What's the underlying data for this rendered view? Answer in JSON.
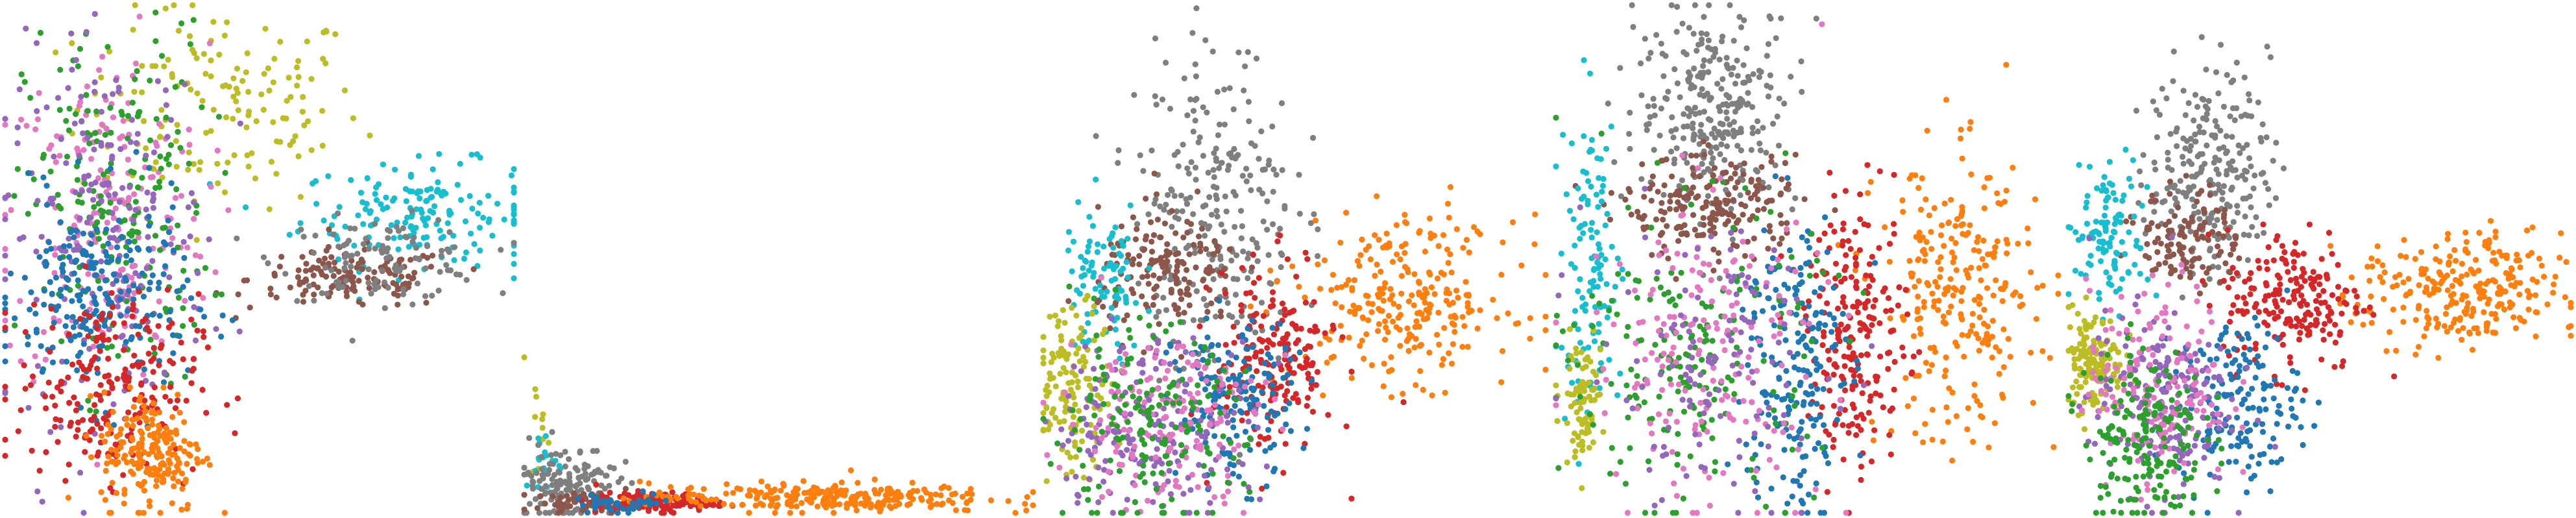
{
  "chart_data": [
    {
      "type": "scatter",
      "xlim": [
        0,
        1
      ],
      "ylim": [
        0,
        1
      ],
      "axes": false,
      "grid": false,
      "legend": "none",
      "clusters": [
        {
          "color": "#bcbd22",
          "n": 150,
          "cx": 0.42,
          "cy": 0.8,
          "sx": 0.14,
          "sy": 0.1
        },
        {
          "color": "#17becf",
          "n": 170,
          "cx": 0.82,
          "cy": 0.59,
          "sx": 0.12,
          "sy": 0.05
        },
        {
          "color": "#8c564b",
          "n": 140,
          "cx": 0.68,
          "cy": 0.46,
          "sx": 0.1,
          "sy": 0.03
        },
        {
          "color": "#7f7f7f",
          "n": 110,
          "cx": 0.74,
          "cy": 0.5,
          "sx": 0.1,
          "sy": 0.04
        },
        {
          "color": "#e377c2",
          "n": 190,
          "cx": 0.2,
          "cy": 0.58,
          "sx": 0.1,
          "sy": 0.17
        },
        {
          "color": "#2ca02c",
          "n": 190,
          "cx": 0.22,
          "cy": 0.6,
          "sx": 0.09,
          "sy": 0.18
        },
        {
          "color": "#9467bd",
          "n": 200,
          "cx": 0.2,
          "cy": 0.55,
          "sx": 0.1,
          "sy": 0.18
        },
        {
          "color": "#1f77b4",
          "n": 230,
          "cx": 0.18,
          "cy": 0.42,
          "sx": 0.09,
          "sy": 0.1
        },
        {
          "color": "#d62728",
          "n": 220,
          "cx": 0.2,
          "cy": 0.25,
          "sx": 0.09,
          "sy": 0.09
        },
        {
          "color": "#ff7f0e",
          "n": 200,
          "cx": 0.29,
          "cy": 0.12,
          "sx": 0.05,
          "sy": 0.06
        }
      ]
    },
    {
      "type": "scatter",
      "xlim": [
        0,
        1
      ],
      "ylim": [
        0,
        1
      ],
      "axes": false,
      "grid": false,
      "legend": "none",
      "clusters": [
        {
          "color": "#bcbd22",
          "n": 12,
          "cx": 0.03,
          "cy": 0.18,
          "sx": 0.01,
          "sy": 0.06
        },
        {
          "color": "#17becf",
          "n": 20,
          "cx": 0.04,
          "cy": 0.1,
          "sx": 0.02,
          "sy": 0.03
        },
        {
          "color": "#7f7f7f",
          "n": 140,
          "cx": 0.08,
          "cy": 0.06,
          "sx": 0.05,
          "sy": 0.04
        },
        {
          "color": "#8c564b",
          "n": 60,
          "cx": 0.12,
          "cy": 0.02,
          "sx": 0.05,
          "sy": 0.01
        },
        {
          "color": "#d62728",
          "n": 120,
          "cx": 0.26,
          "cy": 0.02,
          "sx": 0.06,
          "sy": 0.01
        },
        {
          "color": "#ff7f0e",
          "n": 260,
          "cx": 0.58,
          "cy": 0.03,
          "sx": 0.17,
          "sy": 0.015
        },
        {
          "color": "#1f77b4",
          "n": 40,
          "cx": 0.2,
          "cy": 0.02,
          "sx": 0.05,
          "sy": 0.01
        }
      ]
    },
    {
      "type": "scatter",
      "xlim": [
        0,
        1
      ],
      "ylim": [
        0,
        1
      ],
      "axes": false,
      "grid": false,
      "legend": "none",
      "clusters": [
        {
          "color": "#7f7f7f",
          "n": 260,
          "cx": 0.34,
          "cy": 0.6,
          "sx": 0.08,
          "sy": 0.16
        },
        {
          "color": "#8c564b",
          "n": 160,
          "cx": 0.25,
          "cy": 0.47,
          "sx": 0.07,
          "sy": 0.06
        },
        {
          "color": "#17becf",
          "n": 90,
          "cx": 0.12,
          "cy": 0.45,
          "sx": 0.04,
          "sy": 0.08
        },
        {
          "color": "#ff7f0e",
          "n": 260,
          "cx": 0.72,
          "cy": 0.42,
          "sx": 0.11,
          "sy": 0.08
        },
        {
          "color": "#d62728",
          "n": 200,
          "cx": 0.46,
          "cy": 0.3,
          "sx": 0.06,
          "sy": 0.09
        },
        {
          "color": "#1f77b4",
          "n": 160,
          "cx": 0.38,
          "cy": 0.22,
          "sx": 0.06,
          "sy": 0.08
        },
        {
          "color": "#bcbd22",
          "n": 140,
          "cx": 0.06,
          "cy": 0.25,
          "sx": 0.04,
          "sy": 0.08
        },
        {
          "color": "#9467bd",
          "n": 200,
          "cx": 0.22,
          "cy": 0.17,
          "sx": 0.1,
          "sy": 0.09
        },
        {
          "color": "#e377c2",
          "n": 160,
          "cx": 0.24,
          "cy": 0.19,
          "sx": 0.1,
          "sy": 0.09
        },
        {
          "color": "#2ca02c",
          "n": 160,
          "cx": 0.2,
          "cy": 0.16,
          "sx": 0.1,
          "sy": 0.1
        }
      ]
    },
    {
      "type": "scatter",
      "xlim": [
        0,
        1
      ],
      "ylim": [
        0,
        1
      ],
      "axes": false,
      "grid": false,
      "legend": "none",
      "clusters": [
        {
          "color": "#7f7f7f",
          "n": 280,
          "cx": 0.32,
          "cy": 0.8,
          "sx": 0.08,
          "sy": 0.1
        },
        {
          "color": "#8c564b",
          "n": 200,
          "cx": 0.31,
          "cy": 0.6,
          "sx": 0.09,
          "sy": 0.05
        },
        {
          "color": "#ff7f0e",
          "n": 260,
          "cx": 0.8,
          "cy": 0.42,
          "sx": 0.08,
          "sy": 0.14
        },
        {
          "color": "#d62728",
          "n": 220,
          "cx": 0.6,
          "cy": 0.35,
          "sx": 0.05,
          "sy": 0.13
        },
        {
          "color": "#17becf",
          "n": 120,
          "cx": 0.07,
          "cy": 0.48,
          "sx": 0.03,
          "sy": 0.16
        },
        {
          "color": "#bcbd22",
          "n": 80,
          "cx": 0.05,
          "cy": 0.22,
          "sx": 0.02,
          "sy": 0.06
        },
        {
          "color": "#1f77b4",
          "n": 200,
          "cx": 0.47,
          "cy": 0.3,
          "sx": 0.05,
          "sy": 0.16
        },
        {
          "color": "#2ca02c",
          "n": 200,
          "cx": 0.28,
          "cy": 0.3,
          "sx": 0.12,
          "sy": 0.15
        },
        {
          "color": "#e377c2",
          "n": 180,
          "cx": 0.3,
          "cy": 0.32,
          "sx": 0.12,
          "sy": 0.15
        },
        {
          "color": "#9467bd",
          "n": 120,
          "cx": 0.3,
          "cy": 0.28,
          "sx": 0.12,
          "sy": 0.14
        }
      ]
    },
    {
      "type": "scatter",
      "xlim": [
        0,
        1
      ],
      "ylim": [
        0,
        1
      ],
      "axes": false,
      "grid": false,
      "legend": "none",
      "clusters": [
        {
          "color": "#7f7f7f",
          "n": 240,
          "cx": 0.28,
          "cy": 0.68,
          "sx": 0.06,
          "sy": 0.1
        },
        {
          "color": "#8c564b",
          "n": 120,
          "cx": 0.24,
          "cy": 0.54,
          "sx": 0.05,
          "sy": 0.05
        },
        {
          "color": "#17becf",
          "n": 110,
          "cx": 0.08,
          "cy": 0.55,
          "sx": 0.04,
          "sy": 0.07
        },
        {
          "color": "#ff7f0e",
          "n": 260,
          "cx": 0.78,
          "cy": 0.43,
          "sx": 0.1,
          "sy": 0.06
        },
        {
          "color": "#d62728",
          "n": 200,
          "cx": 0.45,
          "cy": 0.42,
          "sx": 0.07,
          "sy": 0.07
        },
        {
          "color": "#bcbd22",
          "n": 140,
          "cx": 0.05,
          "cy": 0.3,
          "sx": 0.03,
          "sy": 0.05
        },
        {
          "color": "#1f77b4",
          "n": 160,
          "cx": 0.34,
          "cy": 0.22,
          "sx": 0.06,
          "sy": 0.08
        },
        {
          "color": "#9467bd",
          "n": 200,
          "cx": 0.18,
          "cy": 0.22,
          "sx": 0.07,
          "sy": 0.09
        },
        {
          "color": "#e377c2",
          "n": 160,
          "cx": 0.18,
          "cy": 0.25,
          "sx": 0.07,
          "sy": 0.1
        },
        {
          "color": "#2ca02c",
          "n": 180,
          "cx": 0.15,
          "cy": 0.15,
          "sx": 0.06,
          "sy": 0.09
        }
      ]
    }
  ]
}
